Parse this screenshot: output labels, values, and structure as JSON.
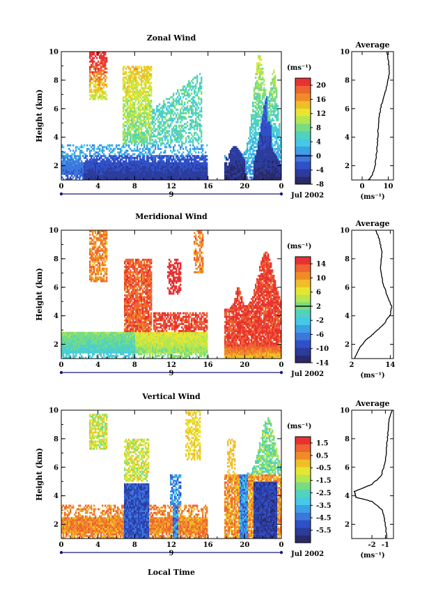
{
  "figure": {
    "xlabel": "Local Time",
    "date_label": "Jul 2002",
    "day_label": "9"
  },
  "colors": {
    "scale": [
      "#2a2a6a",
      "#2c3c9c",
      "#3050c8",
      "#3c78dc",
      "#3ca0e6",
      "#46c8e6",
      "#50d2be",
      "#78dc82",
      "#b4e650",
      "#e6e632",
      "#f0be28",
      "#f08c28",
      "#ee6432",
      "#e83232"
    ]
  },
  "chart_data": [
    {
      "type": "heatmap",
      "title": "Zonal Wind",
      "ylabel": "Height (km)",
      "xlim": [
        0,
        24
      ],
      "ylim": [
        1,
        10
      ],
      "xticks": [
        "0",
        "4",
        "8",
        "12",
        "16",
        "20",
        "0"
      ],
      "yticks": [
        "2",
        "4",
        "6",
        "8",
        "10"
      ],
      "colorbar": {
        "unit": "(ms⁻¹)",
        "min": -8,
        "max": 22,
        "ticks": [
          "20",
          "16",
          "12",
          "8",
          "4",
          "0",
          "-4",
          "-8"
        ],
        "contour_value": 0
      },
      "data_gap_hours": [
        16,
        17.8
      ],
      "average_profile": {
        "title": "Average",
        "xlabel": "(ms⁻¹)",
        "xlim": [
          -4,
          12
        ],
        "xticks": [
          "0",
          "10"
        ],
        "yticks": [
          "2",
          "4",
          "6",
          "8",
          "10"
        ],
        "profile": [
          [
            2.4,
            1.0
          ],
          [
            3.0,
            1.1
          ],
          [
            4.0,
            1.4
          ],
          [
            5.0,
            2.0
          ],
          [
            5.6,
            3.0
          ],
          [
            6.0,
            4.0
          ],
          [
            6.2,
            5.0
          ],
          [
            7.0,
            6.0
          ],
          [
            8.5,
            7.0
          ],
          [
            10.0,
            8.0
          ],
          [
            10.5,
            8.6
          ],
          [
            10.0,
            9.3
          ],
          [
            9.5,
            10.0
          ]
        ]
      }
    },
    {
      "type": "heatmap",
      "title": "Meridional Wind",
      "ylabel": "Height (km)",
      "xlim": [
        0,
        24
      ],
      "ylim": [
        1,
        10
      ],
      "xticks": [
        "0",
        "4",
        "8",
        "12",
        "16",
        "20",
        "0"
      ],
      "yticks": [
        "2",
        "4",
        "6",
        "8",
        "10"
      ],
      "colorbar": {
        "unit": "(ms⁻¹)",
        "min": -14,
        "max": 16,
        "ticks": [
          "14",
          "10",
          "6",
          "2",
          "-2",
          "-6",
          "-10",
          "-14"
        ],
        "contour_value": 2
      },
      "data_gap_hours": [
        16,
        17.8
      ],
      "average_profile": {
        "title": "Average",
        "xlabel": "(ms⁻¹)",
        "xlim": [
          2,
          15
        ],
        "xticks": [
          "2",
          "14"
        ],
        "yticks": [
          "2",
          "4",
          "6",
          "8",
          "10"
        ],
        "profile": [
          [
            3.0,
            1.0
          ],
          [
            4.0,
            1.6
          ],
          [
            6.0,
            2.2
          ],
          [
            9.0,
            2.8
          ],
          [
            12.0,
            3.4
          ],
          [
            14.0,
            4.1
          ],
          [
            14.5,
            4.6
          ],
          [
            13.0,
            5.4
          ],
          [
            11.5,
            6.5
          ],
          [
            11.0,
            7.5
          ],
          [
            11.5,
            8.5
          ],
          [
            10.5,
            9.4
          ],
          [
            9.5,
            10.0
          ]
        ]
      }
    },
    {
      "type": "heatmap",
      "title": "Vertical Wind",
      "ylabel": "Height (km)",
      "xlim": [
        0,
        24
      ],
      "ylim": [
        1,
        10
      ],
      "xticks": [
        "0",
        "4",
        "8",
        "12",
        "16",
        "20",
        "0"
      ],
      "yticks": [
        "2",
        "4",
        "6",
        "8",
        "10"
      ],
      "colorbar": {
        "unit": "(ms⁻¹)",
        "min": -6.5,
        "max": 2.0,
        "ticks": [
          "1.5",
          "0.5",
          "-0.5",
          "-1.5",
          "-2.5",
          "-3.5",
          "-4.5",
          "-5.5"
        ],
        "contour_value": null
      },
      "data_gap_hours": [
        16,
        17.8
      ],
      "average_profile": {
        "title": "Average",
        "xlabel": "(ms⁻¹)",
        "xlim": [
          -3.5,
          -0.4
        ],
        "xticks": [
          "-2",
          "-1"
        ],
        "yticks": [
          "2",
          "4",
          "6",
          "8",
          "10"
        ],
        "profile": [
          [
            -0.9,
            1.0
          ],
          [
            -1.0,
            2.0
          ],
          [
            -1.2,
            3.0
          ],
          [
            -2.0,
            3.6
          ],
          [
            -3.2,
            3.9
          ],
          [
            -3.3,
            4.3
          ],
          [
            -2.0,
            4.8
          ],
          [
            -1.3,
            5.4
          ],
          [
            -1.0,
            6.5
          ],
          [
            -0.9,
            7.5
          ],
          [
            -0.8,
            8.5
          ],
          [
            -0.7,
            9.5
          ],
          [
            -0.5,
            10.0
          ]
        ]
      }
    }
  ]
}
